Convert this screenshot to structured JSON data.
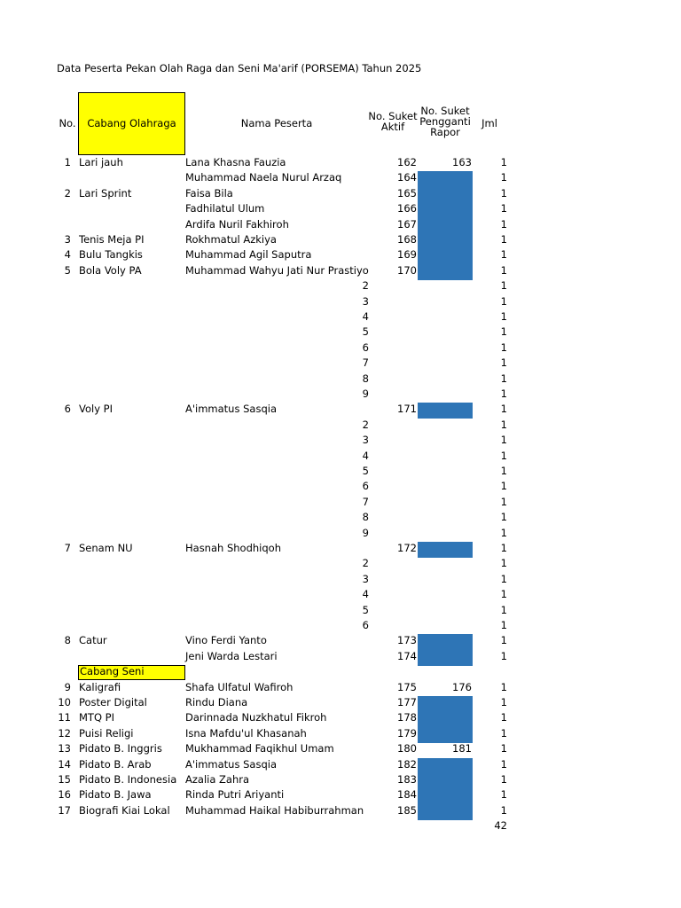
{
  "title": "Data Peserta Pekan Olah Raga dan Seni Ma'arif (PORSEMA) Tahun 2025",
  "headers": {
    "no": "No.",
    "cabang": "Cabang Olahraga",
    "nama": "Nama Peserta",
    "aktif": "No. Suket Aktif",
    "pengganti": "No. Suket Pengganti Rapor",
    "jml": "Jml"
  },
  "accent_colors": {
    "highlight": "#ffff00",
    "fill": "#2e75b6"
  },
  "section_seni": "Cabang Seni",
  "rows": [
    {
      "no": "1",
      "cabang": "Lari jauh",
      "nama": "Lana Khasna Fauzia",
      "sub": "",
      "aktif": "162",
      "pengganti": "163",
      "blue": false,
      "jml": "1"
    },
    {
      "no": "",
      "cabang": "",
      "nama": "Muhammad Naela Nurul Arzaq",
      "sub": "",
      "aktif": "164",
      "pengganti": "",
      "blue": true,
      "jml": "1"
    },
    {
      "no": "2",
      "cabang": "Lari Sprint",
      "nama": "Faisa Bila",
      "sub": "",
      "aktif": "165",
      "pengganti": "",
      "blue": true,
      "jml": "1"
    },
    {
      "no": "",
      "cabang": "",
      "nama": "Fadhilatul Ulum",
      "sub": "",
      "aktif": "166",
      "pengganti": "",
      "blue": true,
      "jml": "1"
    },
    {
      "no": "",
      "cabang": "",
      "nama": "Ardifa Nuril Fakhiroh",
      "sub": "",
      "aktif": "167",
      "pengganti": "",
      "blue": true,
      "jml": "1"
    },
    {
      "no": "3",
      "cabang": "Tenis Meja PI",
      "nama": "Rokhmatul Azkiya",
      "sub": "",
      "aktif": "168",
      "pengganti": "",
      "blue": true,
      "jml": "1"
    },
    {
      "no": "4",
      "cabang": "Bulu Tangkis",
      "nama": "Muhammad Agil Saputra",
      "sub": "",
      "aktif": "169",
      "pengganti": "",
      "blue": true,
      "jml": "1"
    },
    {
      "no": "5",
      "cabang": "Bola Voly PA",
      "nama": "Muhammad Wahyu Jati Nur Prastiyo",
      "sub": "",
      "aktif": "170",
      "pengganti": "",
      "blue": true,
      "jml": "1"
    },
    {
      "no": "",
      "cabang": "",
      "nama": "",
      "sub": "2",
      "aktif": "",
      "pengganti": "",
      "blue": false,
      "jml": "1"
    },
    {
      "no": "",
      "cabang": "",
      "nama": "",
      "sub": "3",
      "aktif": "",
      "pengganti": "",
      "blue": false,
      "jml": "1"
    },
    {
      "no": "",
      "cabang": "",
      "nama": "",
      "sub": "4",
      "aktif": "",
      "pengganti": "",
      "blue": false,
      "jml": "1"
    },
    {
      "no": "",
      "cabang": "",
      "nama": "",
      "sub": "5",
      "aktif": "",
      "pengganti": "",
      "blue": false,
      "jml": "1"
    },
    {
      "no": "",
      "cabang": "",
      "nama": "",
      "sub": "6",
      "aktif": "",
      "pengganti": "",
      "blue": false,
      "jml": "1"
    },
    {
      "no": "",
      "cabang": "",
      "nama": "",
      "sub": "7",
      "aktif": "",
      "pengganti": "",
      "blue": false,
      "jml": "1"
    },
    {
      "no": "",
      "cabang": "",
      "nama": "",
      "sub": "8",
      "aktif": "",
      "pengganti": "",
      "blue": false,
      "jml": "1"
    },
    {
      "no": "",
      "cabang": "",
      "nama": "",
      "sub": "9",
      "aktif": "",
      "pengganti": "",
      "blue": false,
      "jml": "1"
    },
    {
      "no": "6",
      "cabang": "Voly PI",
      "nama": "A'immatus Sasqia",
      "sub": "",
      "aktif": "171",
      "pengganti": "",
      "blue": true,
      "jml": "1"
    },
    {
      "no": "",
      "cabang": "",
      "nama": "",
      "sub": "2",
      "aktif": "",
      "pengganti": "",
      "blue": false,
      "jml": "1"
    },
    {
      "no": "",
      "cabang": "",
      "nama": "",
      "sub": "3",
      "aktif": "",
      "pengganti": "",
      "blue": false,
      "jml": "1"
    },
    {
      "no": "",
      "cabang": "",
      "nama": "",
      "sub": "4",
      "aktif": "",
      "pengganti": "",
      "blue": false,
      "jml": "1"
    },
    {
      "no": "",
      "cabang": "",
      "nama": "",
      "sub": "5",
      "aktif": "",
      "pengganti": "",
      "blue": false,
      "jml": "1"
    },
    {
      "no": "",
      "cabang": "",
      "nama": "",
      "sub": "6",
      "aktif": "",
      "pengganti": "",
      "blue": false,
      "jml": "1"
    },
    {
      "no": "",
      "cabang": "",
      "nama": "",
      "sub": "7",
      "aktif": "",
      "pengganti": "",
      "blue": false,
      "jml": "1"
    },
    {
      "no": "",
      "cabang": "",
      "nama": "",
      "sub": "8",
      "aktif": "",
      "pengganti": "",
      "blue": false,
      "jml": "1"
    },
    {
      "no": "",
      "cabang": "",
      "nama": "",
      "sub": "9",
      "aktif": "",
      "pengganti": "",
      "blue": false,
      "jml": "1"
    },
    {
      "no": "7",
      "cabang": "Senam NU",
      "nama": "Hasnah Shodhiqoh",
      "sub": "",
      "aktif": "172",
      "pengganti": "",
      "blue": true,
      "jml": "1"
    },
    {
      "no": "",
      "cabang": "",
      "nama": "",
      "sub": "2",
      "aktif": "",
      "pengganti": "",
      "blue": false,
      "jml": "1"
    },
    {
      "no": "",
      "cabang": "",
      "nama": "",
      "sub": "3",
      "aktif": "",
      "pengganti": "",
      "blue": false,
      "jml": "1"
    },
    {
      "no": "",
      "cabang": "",
      "nama": "",
      "sub": "4",
      "aktif": "",
      "pengganti": "",
      "blue": false,
      "jml": "1"
    },
    {
      "no": "",
      "cabang": "",
      "nama": "",
      "sub": "5",
      "aktif": "",
      "pengganti": "",
      "blue": false,
      "jml": "1"
    },
    {
      "no": "",
      "cabang": "",
      "nama": "",
      "sub": "6",
      "aktif": "",
      "pengganti": "",
      "blue": false,
      "jml": "1"
    },
    {
      "no": "8",
      "cabang": "Catur",
      "nama": "Vino Ferdi Yanto",
      "sub": "",
      "aktif": "173",
      "pengganti": "",
      "blue": true,
      "jml": "1"
    },
    {
      "no": "",
      "cabang": "",
      "nama": "Jeni Warda Lestari",
      "sub": "",
      "aktif": "174",
      "pengganti": "",
      "blue": true,
      "jml": "1"
    },
    {
      "section": true
    },
    {
      "no": "9",
      "cabang": "Kaligrafi",
      "nama": "Shafa Ulfatul Wafiroh",
      "sub": "",
      "aktif": "175",
      "pengganti": "176",
      "blue": false,
      "jml": "1"
    },
    {
      "no": "10",
      "cabang": "Poster Digital",
      "nama": "Rindu Diana",
      "sub": "",
      "aktif": "177",
      "pengganti": "",
      "blue": true,
      "jml": "1"
    },
    {
      "no": "11",
      "cabang": "MTQ PI",
      "nama": "Darinnada Nuzkhatul Fikroh",
      "sub": "",
      "aktif": "178",
      "pengganti": "",
      "blue": true,
      "jml": "1"
    },
    {
      "no": "12",
      "cabang": "Puisi Religi",
      "nama": "Isna Mafdu'ul Khasanah",
      "sub": "",
      "aktif": "179",
      "pengganti": "",
      "blue": true,
      "jml": "1"
    },
    {
      "no": "13",
      "cabang": "Pidato B. Inggris",
      "nama": "Mukhammad Faqikhul Umam",
      "sub": "",
      "aktif": "180",
      "pengganti": "181",
      "blue": false,
      "jml": "1"
    },
    {
      "no": "14",
      "cabang": "Pidato B. Arab",
      "nama": "A'immatus Sasqia",
      "sub": "",
      "aktif": "182",
      "pengganti": "",
      "blue": true,
      "jml": "1"
    },
    {
      "no": "15",
      "cabang": "Pidato B. Indonesia",
      "nama": "Azalia Zahra",
      "sub": "",
      "aktif": "183",
      "pengganti": "",
      "blue": true,
      "jml": "1"
    },
    {
      "no": "16",
      "cabang": "Pidato B. Jawa",
      "nama": "Rinda Putri Ariyanti",
      "sub": "",
      "aktif": "184",
      "pengganti": "",
      "blue": true,
      "jml": "1"
    },
    {
      "no": "17",
      "cabang": "Biografi Kiai Lokal",
      "nama": "Muhammad Haikal Habiburrahman",
      "sub": "",
      "aktif": "185",
      "pengganti": "",
      "blue": true,
      "jml": "1"
    }
  ],
  "total": "42"
}
